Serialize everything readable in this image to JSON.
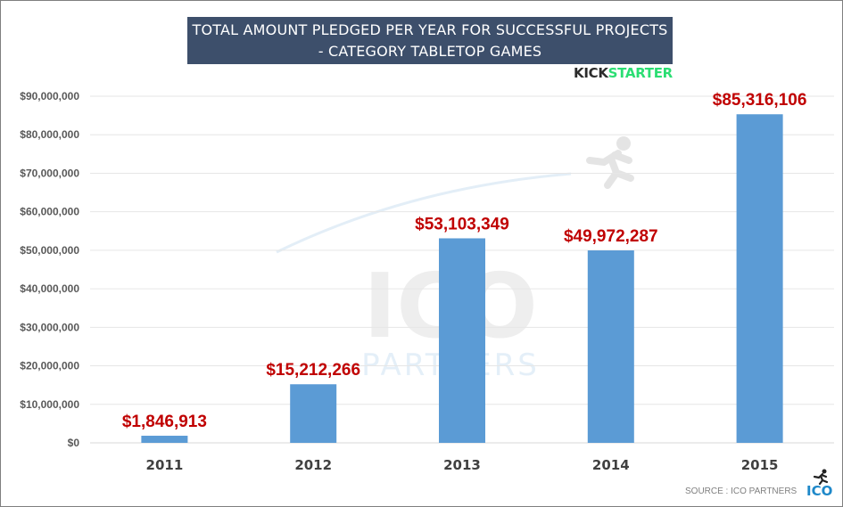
{
  "header": {
    "title_line1": "TOTAL AMOUNT PLEDGED PER YEAR FOR SUCCESSFUL PROJECTS",
    "title_line2": "- CATEGORY TABLETOP GAMES",
    "brand_part1": "KICK",
    "brand_part2": "STARTER"
  },
  "watermark": {
    "letters": "ICO",
    "subtitle": "PARTNERS"
  },
  "footer": {
    "source": "SOURCE : ICO PARTNERS",
    "logo": "ICO"
  },
  "colors": {
    "bar": "#5b9bd5",
    "label": "#c00000",
    "title_bg": "#3d4f6b",
    "brand_dark": "#2b2b2b",
    "brand_green": "#2bde73"
  },
  "chart_data": {
    "type": "bar",
    "title": "TOTAL AMOUNT PLEDGED PER YEAR FOR SUCCESSFUL PROJECTS - CATEGORY TABLETOP GAMES",
    "categories": [
      "2011",
      "2012",
      "2013",
      "2014",
      "2015"
    ],
    "values": [
      1846913,
      15212266,
      53103349,
      49972287,
      85316106
    ],
    "data_labels": [
      "$1,846,913",
      "$15,212,266",
      "$53,103,349",
      "$49,972,287",
      "$85,316,106"
    ],
    "y_ticks": [
      "$0",
      "$10,000,000",
      "$20,000,000",
      "$30,000,000",
      "$40,000,000",
      "$50,000,000",
      "$60,000,000",
      "$70,000,000",
      "$80,000,000",
      "$90,000,000"
    ],
    "ylim": [
      0,
      90000000
    ],
    "xlabel": "",
    "ylabel": "",
    "grid": true
  }
}
